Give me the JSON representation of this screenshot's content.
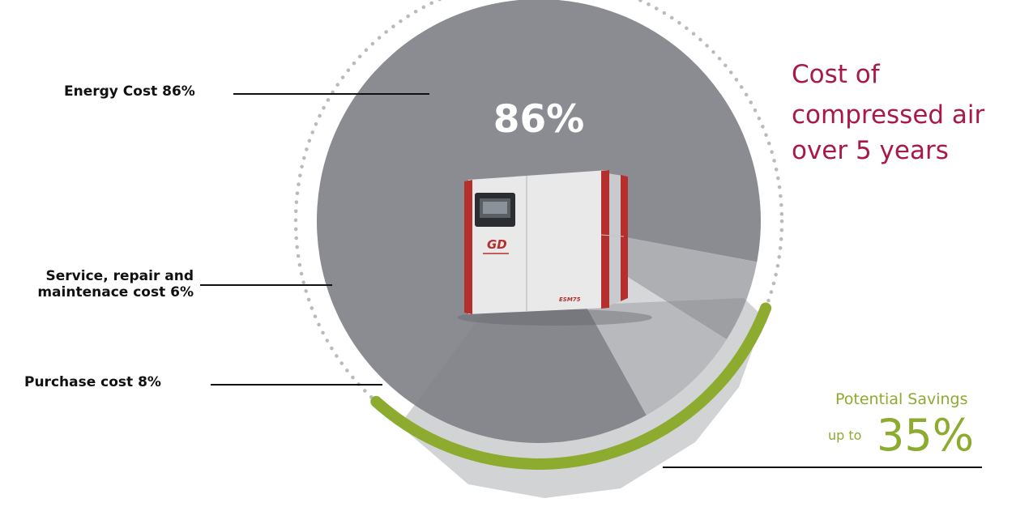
{
  "title_lines": [
    "Cost of",
    "compressed air",
    "over 5 years"
  ],
  "chart_data": {
    "type": "pie",
    "slices": [
      {
        "label": "Energy Cost 86%",
        "value": 86,
        "display": "86%",
        "color": "#8a8c91",
        "text_color": "#ffffff"
      },
      {
        "label": "Service, repair and maintenace cost 6%",
        "label_lines": [
          "Service, repair and",
          "maintenace cost 6%"
        ],
        "value": 6,
        "display": "6%",
        "color": "#aeafb3",
        "text_color": "#8a8c91"
      },
      {
        "label": "Purchase cost 8%",
        "value": 8,
        "display": "8%",
        "color": "#d6d7d9",
        "text_color": "#8a8c91"
      }
    ]
  },
  "savings": {
    "label": "Potential Savings",
    "prefix": "up to",
    "value": "35%",
    "percent": 35,
    "color": "#8cab2f"
  },
  "product": {
    "logo_text": "GD",
    "model_text": "ESM75"
  },
  "colors": {
    "title": "#a8194a",
    "accent_red": "#b5302c",
    "cabinet": "#e9e9ea"
  }
}
